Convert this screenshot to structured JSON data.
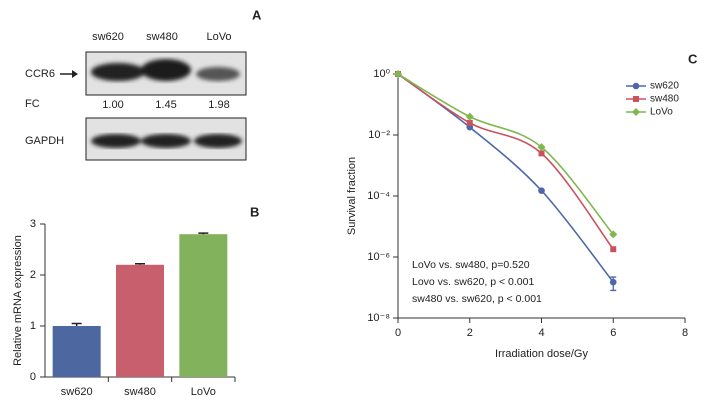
{
  "blot": {
    "label": "A",
    "lanes": [
      "sw620",
      "sw480",
      "LoVo"
    ],
    "rows": [
      "CCR6",
      "FC",
      "GAPDH"
    ],
    "fc": {
      "values": [
        1.0,
        1.45,
        1.98
      ],
      "value_labels": [
        "1.00",
        "1.45",
        "1.98"
      ]
    }
  },
  "chart_data": [
    {
      "type": "bar",
      "label": "B",
      "y_label": "Relative mRNA expression",
      "categories": [
        "sw620",
        "sw480",
        "LoVo"
      ],
      "values": [
        1.0,
        2.2,
        2.8
      ],
      "errors": [
        0.05,
        0.02,
        0.02
      ],
      "colors": [
        "#4d67a0",
        "#c75f6c",
        "#82b35c"
      ],
      "ylim": [
        0,
        3
      ],
      "yticks": [
        0,
        1,
        2,
        3
      ]
    },
    {
      "type": "line",
      "label": "C",
      "x_label": "Irradiation dose/Gy",
      "y_label": "Survival fraction",
      "log_y": true,
      "legend": "top-right",
      "x": [
        0,
        2,
        4,
        6
      ],
      "series": [
        {
          "name": "sw620",
          "color": "#4d67a8",
          "marker": "circle",
          "values": [
            1,
            0.018,
            0.00015,
            1.5e-07
          ],
          "errors": [
            null,
            null,
            null,
            7e-08
          ]
        },
        {
          "name": "sw480",
          "color": "#c9525e",
          "marker": "square",
          "values": [
            1,
            0.025,
            0.0025,
            1.8e-06
          ],
          "errors": [
            null,
            null,
            null,
            null
          ]
        },
        {
          "name": "LoVo",
          "color": "#7fb84e",
          "marker": "diamond",
          "values": [
            1,
            0.04,
            0.004,
            5.5e-06
          ],
          "errors": [
            null,
            null,
            null,
            null
          ]
        }
      ],
      "xlim": [
        0,
        8
      ],
      "xticks": [
        0,
        2,
        4,
        6,
        8
      ],
      "ylim": [
        1e-08,
        1
      ],
      "yticks": [
        {
          "value": 1e-08,
          "label": "10⁻⁸"
        },
        {
          "value": 1e-06,
          "label": "10⁻⁶"
        },
        {
          "value": 0.0001,
          "label": "10⁻⁴"
        },
        {
          "value": 0.01,
          "label": "10⁻²"
        },
        {
          "value": 1,
          "label": "10⁰"
        }
      ],
      "annotations": [
        "LoVo vs. sw480, p=0.520",
        "Lovo vs. sw620, p < 0.001",
        "sw480 vs. sw620, p < 0.001"
      ]
    }
  ]
}
